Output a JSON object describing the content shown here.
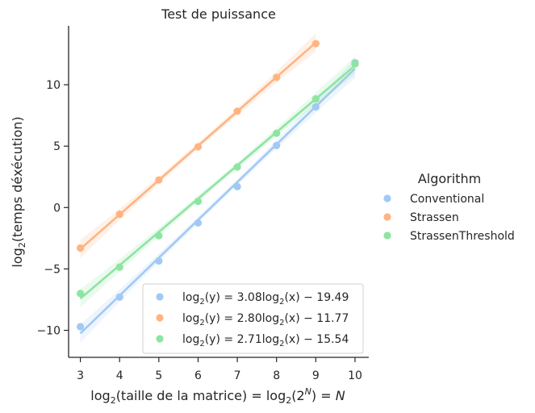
{
  "chart_data": {
    "type": "scatter",
    "title": "Test de puissance",
    "xlabel": {
      "a": "log",
      "b": "2",
      "c": "(taille de la matrice) = log",
      "d": "2",
      "e": "(2",
      "f": "N",
      "g": ") = ",
      "h": "N"
    },
    "ylabel": {
      "a": "log",
      "b": "2",
      "c": "(temps déxécution)"
    },
    "xlim": [
      2.7,
      10.35
    ],
    "ylim": [
      -12.2,
      14.8
    ],
    "x_ticks": [
      3,
      4,
      5,
      6,
      7,
      8,
      9,
      10
    ],
    "y_ticks": [
      -10,
      -5,
      0,
      5,
      10
    ],
    "legend_title": "Algorithm",
    "legend_placement": "outside-right",
    "series": [
      {
        "name": "Conventional",
        "color": "#a1c9f4",
        "slope": 3.08,
        "intercept": -19.49,
        "x": [
          3,
          4,
          5,
          6,
          7,
          8,
          9,
          10
        ],
        "y": [
          -9.7,
          -7.3,
          -4.35,
          -1.25,
          1.7,
          5.05,
          8.2,
          11.8
        ]
      },
      {
        "name": "Strassen",
        "color": "#ffb482",
        "slope": 2.8,
        "intercept": -11.77,
        "x": [
          3,
          4,
          5,
          6,
          7,
          8,
          9
        ],
        "y": [
          -3.3,
          -0.55,
          2.25,
          4.95,
          7.85,
          10.6,
          13.35
        ]
      },
      {
        "name": "StrassenThreshold",
        "color": "#8de5a1",
        "slope": 2.71,
        "intercept": -15.54,
        "x": [
          3,
          4,
          5,
          6,
          7,
          8,
          9,
          10
        ],
        "y": [
          -7.0,
          -4.85,
          -2.3,
          0.5,
          3.3,
          6.05,
          8.85,
          11.7
        ]
      }
    ],
    "regression_legend": [
      {
        "lhs": "log",
        "sub": "2",
        "mid1": "(y) = ",
        "coef": "3.08",
        "mid2": "log",
        "sub2": "2",
        "mid3": "(x) − ",
        "const": "19.49",
        "color": "#a1c9f4"
      },
      {
        "lhs": "log",
        "sub": "2",
        "mid1": "(y) = ",
        "coef": "2.80",
        "mid2": "log",
        "sub2": "2",
        "mid3": "(x) − ",
        "const": "11.77",
        "color": "#ffb482"
      },
      {
        "lhs": "log",
        "sub": "2",
        "mid1": "(y) = ",
        "coef": "2.71",
        "mid2": "log",
        "sub2": "2",
        "mid3": "(x) − ",
        "const": "15.54",
        "color": "#8de5a1"
      }
    ]
  }
}
